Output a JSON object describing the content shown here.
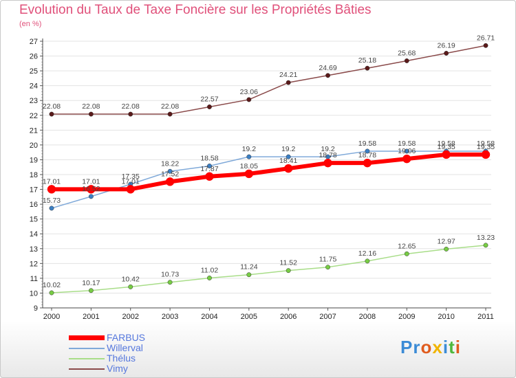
{
  "title": "Evolution du Taux de Taxe Foncière sur les Propriétés Bâties",
  "subtitle": "(en %)",
  "logo": {
    "text": "Proxiti",
    "letters": [
      {
        "c": "P",
        "color": "#3b8bd6"
      },
      {
        "c": "r",
        "color": "#3b8bd6"
      },
      {
        "c": "o",
        "color": "#e05c1e"
      },
      {
        "c": "x",
        "color": "#f0b400"
      },
      {
        "c": "i",
        "color": "#3b8bd6"
      },
      {
        "c": "t",
        "color": "#4fb83c"
      },
      {
        "c": "i",
        "color": "#e05c1e"
      }
    ]
  },
  "chart_data": {
    "type": "line",
    "title": "Evolution du Taux de Taxe Foncière sur les Propriétés Bâties",
    "ylabel": "(en %)",
    "xlabel": "",
    "x": [
      "2000",
      "2001",
      "2002",
      "2003",
      "2004",
      "2005",
      "2006",
      "2007",
      "2008",
      "2009",
      "2010",
      "2011"
    ],
    "ylim": [
      9,
      27
    ],
    "yticks": [
      9,
      10,
      11,
      12,
      13,
      14,
      15,
      16,
      17,
      18,
      19,
      20,
      21,
      22,
      23,
      24,
      25,
      26,
      27
    ],
    "grid": "horizontal",
    "legend_position": "bottom-left",
    "series": [
      {
        "name": "FARBUS",
        "color": "#ff0000",
        "marker": "#ff0000",
        "width": 6,
        "values": [
          17.01,
          17.01,
          17.01,
          17.52,
          17.87,
          18.05,
          18.41,
          18.78,
          18.78,
          19.06,
          19.35,
          19.35
        ],
        "labels": [
          "17.01",
          "17.01",
          "17.01",
          "17.52",
          "17.87",
          "18.05",
          "18.41",
          "18.78",
          "18.78",
          "19.06",
          "19.35",
          "19.35"
        ]
      },
      {
        "name": "Willerval",
        "color": "#7fa9d9",
        "marker": "#3b7fc4",
        "width": 1.5,
        "values": [
          15.73,
          16.52,
          17.35,
          18.22,
          18.58,
          19.2,
          19.2,
          19.2,
          19.58,
          19.58,
          19.58,
          19.58
        ],
        "labels": [
          "15.73",
          "16.52",
          "17.35",
          "18.22",
          "18.58",
          "19.2",
          "19.2",
          "19.2",
          "19.58",
          "19.58",
          "19.58",
          "19.58"
        ]
      },
      {
        "name": "Thélus",
        "color": "#a8dd88",
        "marker": "#77cc44",
        "width": 1.5,
        "values": [
          10.02,
          10.17,
          10.42,
          10.73,
          11.02,
          11.24,
          11.52,
          11.75,
          12.16,
          12.65,
          12.97,
          13.23
        ],
        "labels": [
          "10.02",
          "10.17",
          "10.42",
          "10.73",
          "11.02",
          "11.24",
          "11.52",
          "11.75",
          "12.16",
          "12.65",
          "12.97",
          "13.23"
        ]
      },
      {
        "name": "Vimy",
        "color": "#8a4a4a",
        "marker": "#5a1a1a",
        "width": 1.5,
        "values": [
          22.08,
          22.08,
          22.08,
          22.08,
          22.57,
          23.06,
          24.21,
          24.69,
          25.18,
          25.68,
          26.19,
          26.71
        ],
        "labels": [
          "22.08",
          "22.08",
          "22.08",
          "22.08",
          "22.57",
          "23.06",
          "24.21",
          "24.69",
          "25.18",
          "25.68",
          "26.19",
          "26.71"
        ]
      }
    ]
  }
}
